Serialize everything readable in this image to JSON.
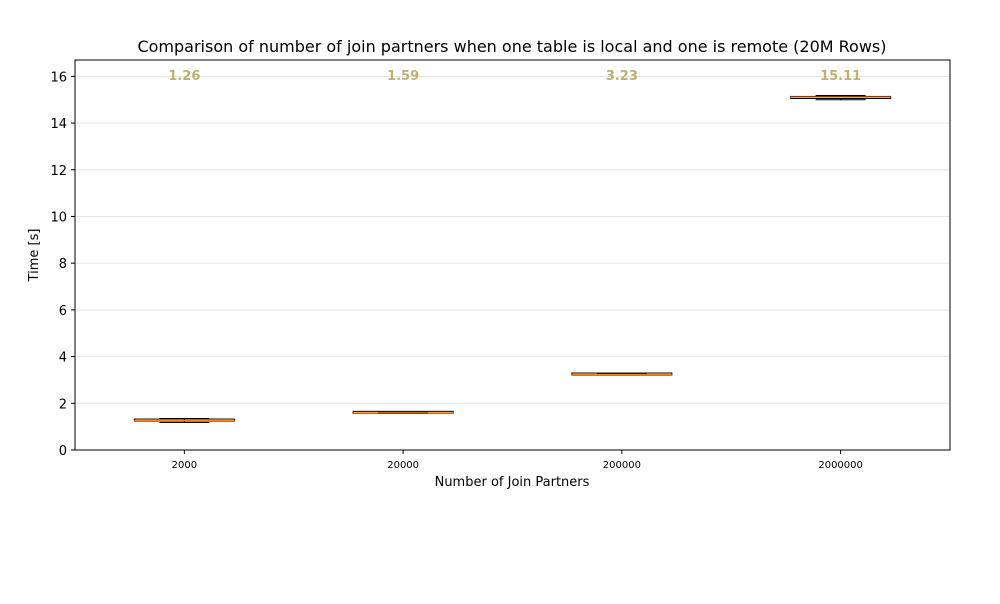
{
  "chart_data": {
    "type": "box",
    "title": "Comparison of number of join partners when one table is local and one is remote (20M Rows)",
    "xlabel": "Number of Join Partners",
    "ylabel": "Time [s]",
    "ylim": [
      0,
      16.7
    ],
    "yticks": [
      0,
      2,
      4,
      6,
      8,
      10,
      12,
      14,
      16
    ],
    "grid": "horizontal",
    "colors": {
      "median": "#ff7f0e",
      "box": "#000000",
      "annotation": "#bcb36a",
      "grid": "#e6e6e6"
    },
    "categories": [
      "2000",
      "20000",
      "200000",
      "2000000"
    ],
    "boxes": [
      {
        "label": "2000",
        "whisker_low": 1.18,
        "q1": 1.24,
        "median": 1.26,
        "q3": 1.28,
        "whisker_high": 1.35,
        "annotation": "1.26"
      },
      {
        "label": "20000",
        "whisker_low": 1.57,
        "q1": 1.57,
        "median": 1.59,
        "q3": 1.61,
        "whisker_high": 1.61,
        "annotation": "1.59"
      },
      {
        "label": "200000",
        "whisker_low": 3.21,
        "q1": 3.21,
        "median": 3.23,
        "q3": 3.25,
        "whisker_high": 3.25,
        "annotation": "3.23"
      },
      {
        "label": "2000000",
        "whisker_low": 15.0,
        "q1": 15.05,
        "median": 15.11,
        "q3": 15.14,
        "whisker_high": 15.18,
        "annotation": "15.11"
      }
    ]
  }
}
